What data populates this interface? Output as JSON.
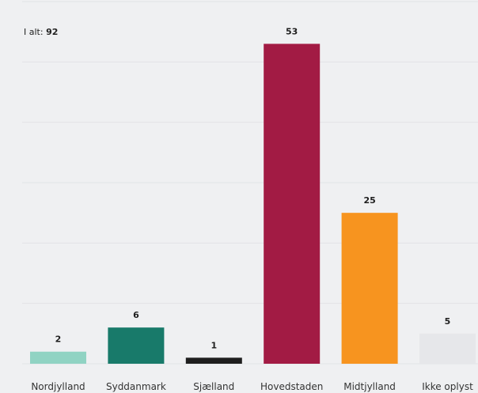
{
  "total": {
    "label": "I alt:",
    "value": "92"
  },
  "chart_data": {
    "type": "bar",
    "categories": [
      "Nordjylland",
      "Syddanmark",
      "Sjælland",
      "Hovedstaden",
      "Midtjylland",
      "Ikke oplyst"
    ],
    "values": [
      2,
      6,
      1,
      53,
      25,
      5
    ],
    "colors": [
      "#90d3c3",
      "#187a6a",
      "#1e1e1e",
      "#a21b44",
      "#f7941f",
      "#e6e7ea"
    ],
    "ylim": [
      0,
      60
    ],
    "grid": true,
    "legend": "none",
    "title": "",
    "xlabel": "",
    "ylabel": ""
  }
}
